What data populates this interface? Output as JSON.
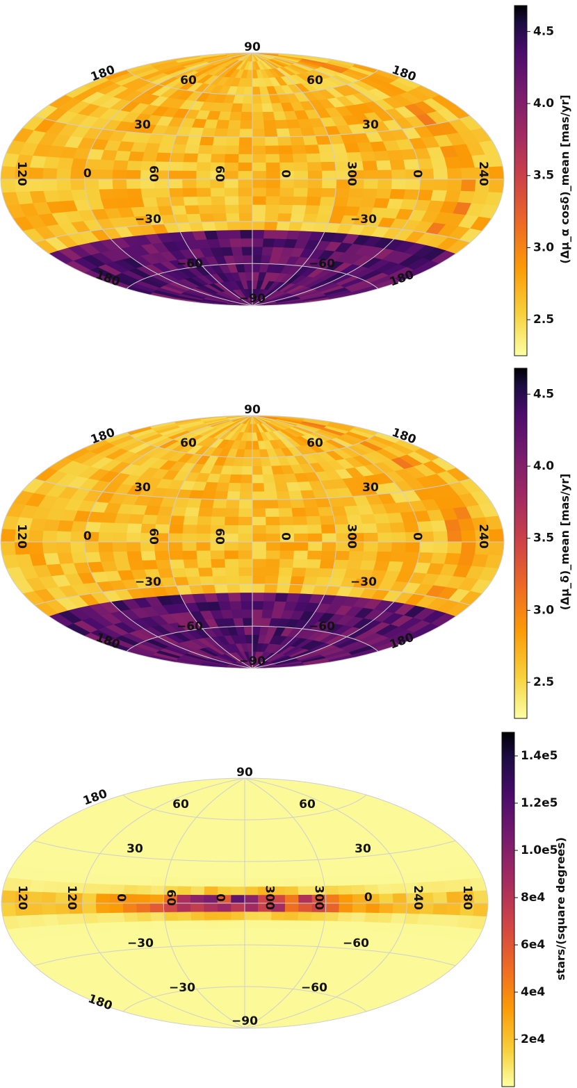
{
  "chart_data": [
    {
      "type": "heatmap",
      "projection": "aitoff",
      "quantity_label": "(Δμ_α cosδ)_mean [mas/yr]",
      "colorbar": {
        "ticks": [
          "2.5",
          "3.0",
          "3.5",
          "4.0",
          "4.5"
        ],
        "tick_values": [
          2.5,
          3.0,
          3.5,
          4.0,
          4.5
        ],
        "range": [
          2.25,
          4.68
        ],
        "colormap": "inferno_r"
      },
      "grid_labels": {
        "top": "90",
        "bottom": "−90",
        "lat_pos": [
          "60",
          "60",
          "30",
          "30"
        ],
        "lat_neg": [
          "−30",
          "−30",
          "−60",
          "−60"
        ],
        "lon_top": [
          "180",
          "180"
        ],
        "lon_bottom": [
          "180",
          "180"
        ],
        "lon_equator": [
          "120",
          "0",
          "60",
          "60",
          "0",
          "300",
          "0",
          "240"
        ]
      },
      "background_level": 2.62,
      "southern_level": 4.05
    },
    {
      "type": "heatmap",
      "projection": "aitoff",
      "quantity_label": "(Δμ_δ)_mean [mas/yr]",
      "colorbar": {
        "ticks": [
          "2.5",
          "3.0",
          "3.5",
          "4.0",
          "4.5"
        ],
        "tick_values": [
          2.5,
          3.0,
          3.5,
          4.0,
          4.5
        ],
        "range": [
          2.25,
          4.68
        ],
        "colormap": "inferno_r"
      },
      "grid_labels": {
        "top": "90",
        "bottom": "−90",
        "lat_pos": [
          "60",
          "60",
          "30",
          "30"
        ],
        "lat_neg": [
          "−30",
          "−30",
          "−60",
          "−60"
        ],
        "lon_top": [
          "180",
          "180"
        ],
        "lon_bottom": [
          "180",
          "180"
        ],
        "lon_equator": [
          "120",
          "0",
          "60",
          "60",
          "0",
          "300",
          "0",
          "240"
        ]
      },
      "background_level": 2.62,
      "southern_level": 4.05
    },
    {
      "type": "heatmap",
      "projection": "aitoff",
      "quantity_label": "stars/(square degrees)",
      "colorbar": {
        "ticks": [
          "2e4",
          "4e4",
          "6e4",
          "8e4",
          "1.0e5",
          "1.2e5",
          "1.4e5"
        ],
        "tick_values": [
          20000,
          40000,
          60000,
          80000,
          100000,
          120000,
          140000
        ],
        "range": [
          0,
          150000
        ],
        "colormap": "inferno_r"
      },
      "grid_labels": {
        "top": "90",
        "bottom": "−90",
        "lat_pos": [
          "60",
          "60",
          "30",
          "30"
        ],
        "lat_neg": [
          "−30",
          "−60",
          "−30",
          "−60"
        ],
        "lon_top": [
          "180"
        ],
        "lon_bottom": [
          "180"
        ],
        "lon_equator": [
          "120",
          "120",
          "0",
          "60",
          "0",
          "300",
          "300",
          "0",
          "240",
          "180"
        ]
      },
      "background_level": 2000,
      "plane_level": 85000
    }
  ],
  "colors": {
    "inferno_r_stops": [
      "#fcffa4",
      "#f7d13d",
      "#fb9b06",
      "#ed6925",
      "#cf4446",
      "#a52c60",
      "#781c6d",
      "#4a0c6b",
      "#1b0c41",
      "#000004"
    ],
    "grid": "#cfcfcf"
  }
}
